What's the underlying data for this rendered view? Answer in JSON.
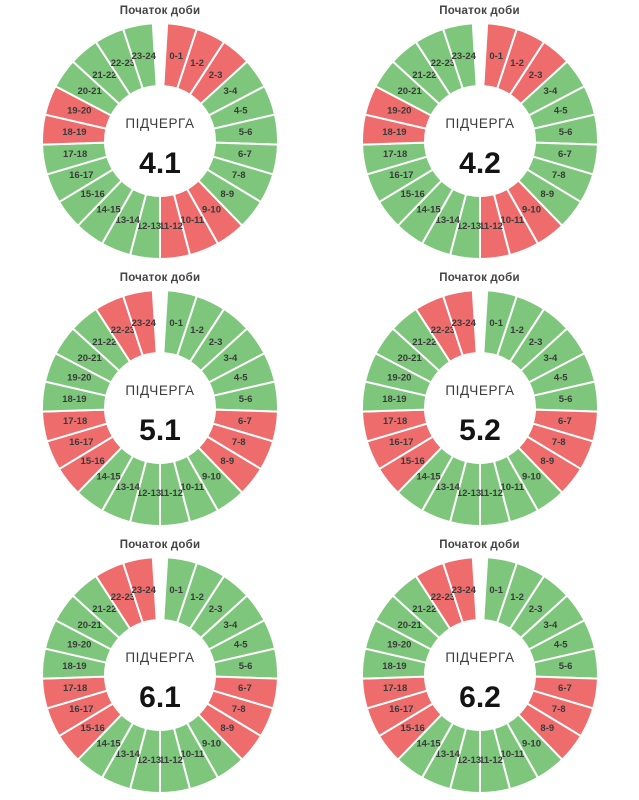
{
  "page": {
    "background": "#ffffff"
  },
  "colors": {
    "segment_on": "#7dc67b",
    "segment_off": "#ee6c6c",
    "slice_border": "#ffffff",
    "hour_label": "#3a3a3a",
    "day_start_label": "#444444",
    "center_label": "#3c3c3c",
    "center_value": "#141414"
  },
  "chart_data": [
    {
      "type": "pie",
      "style": "donut",
      "title": "Початок доби",
      "center_label": "ПІДЧЕРГА",
      "center_value": "4.1",
      "equal_slices": true,
      "legend_position": "none",
      "categories": [
        "0-1",
        "1-2",
        "2-3",
        "3-4",
        "4-5",
        "5-6",
        "6-7",
        "7-8",
        "8-9",
        "9-10",
        "10-11",
        "11-12",
        "12-13",
        "13-14",
        "14-15",
        "15-16",
        "16-17",
        "17-18",
        "18-19",
        "19-20",
        "20-21",
        "21-22",
        "22-23",
        "23-24"
      ],
      "statuses": [
        "off",
        "off",
        "off",
        "on",
        "on",
        "on",
        "on",
        "on",
        "on",
        "off",
        "off",
        "off",
        "on",
        "on",
        "on",
        "on",
        "on",
        "on",
        "off",
        "off",
        "on",
        "on",
        "on",
        "on"
      ]
    },
    {
      "type": "pie",
      "style": "donut",
      "title": "Початок доби",
      "center_label": "ПІДЧЕРГА",
      "center_value": "4.2",
      "equal_slices": true,
      "legend_position": "none",
      "categories": [
        "0-1",
        "1-2",
        "2-3",
        "3-4",
        "4-5",
        "5-6",
        "6-7",
        "7-8",
        "8-9",
        "9-10",
        "10-11",
        "11-12",
        "12-13",
        "13-14",
        "14-15",
        "15-16",
        "16-17",
        "17-18",
        "18-19",
        "19-20",
        "20-21",
        "21-22",
        "22-23",
        "23-24"
      ],
      "statuses": [
        "off",
        "off",
        "off",
        "on",
        "on",
        "on",
        "on",
        "on",
        "on",
        "off",
        "off",
        "off",
        "on",
        "on",
        "on",
        "on",
        "on",
        "on",
        "off",
        "off",
        "on",
        "on",
        "on",
        "on"
      ]
    },
    {
      "type": "pie",
      "style": "donut",
      "title": "Початок доби",
      "center_label": "ПІДЧЕРГА",
      "center_value": "5.1",
      "equal_slices": true,
      "legend_position": "none",
      "categories": [
        "0-1",
        "1-2",
        "2-3",
        "3-4",
        "4-5",
        "5-6",
        "6-7",
        "7-8",
        "8-9",
        "9-10",
        "10-11",
        "11-12",
        "12-13",
        "13-14",
        "14-15",
        "15-16",
        "16-17",
        "17-18",
        "18-19",
        "19-20",
        "20-21",
        "21-22",
        "22-23",
        "23-24"
      ],
      "statuses": [
        "on",
        "on",
        "on",
        "on",
        "on",
        "on",
        "off",
        "off",
        "off",
        "on",
        "on",
        "on",
        "on",
        "on",
        "on",
        "off",
        "off",
        "off",
        "on",
        "on",
        "on",
        "on",
        "off",
        "off"
      ]
    },
    {
      "type": "pie",
      "style": "donut",
      "title": "Початок доби",
      "center_label": "ПІДЧЕРГА",
      "center_value": "5.2",
      "equal_slices": true,
      "legend_position": "none",
      "categories": [
        "0-1",
        "1-2",
        "2-3",
        "3-4",
        "4-5",
        "5-6",
        "6-7",
        "7-8",
        "8-9",
        "9-10",
        "10-11",
        "11-12",
        "12-13",
        "13-14",
        "14-15",
        "15-16",
        "16-17",
        "17-18",
        "18-19",
        "19-20",
        "20-21",
        "21-22",
        "22-23",
        "23-24"
      ],
      "statuses": [
        "on",
        "on",
        "on",
        "on",
        "on",
        "on",
        "off",
        "off",
        "off",
        "on",
        "on",
        "on",
        "on",
        "on",
        "on",
        "off",
        "off",
        "off",
        "on",
        "on",
        "on",
        "on",
        "off",
        "off"
      ]
    },
    {
      "type": "pie",
      "style": "donut",
      "title": "Початок доби",
      "center_label": "ПІДЧЕРГА",
      "center_value": "6.1",
      "equal_slices": true,
      "legend_position": "none",
      "categories": [
        "0-1",
        "1-2",
        "2-3",
        "3-4",
        "4-5",
        "5-6",
        "6-7",
        "7-8",
        "8-9",
        "9-10",
        "10-11",
        "11-12",
        "12-13",
        "13-14",
        "14-15",
        "15-16",
        "16-17",
        "17-18",
        "18-19",
        "19-20",
        "20-21",
        "21-22",
        "22-23",
        "23-24"
      ],
      "statuses": [
        "on",
        "on",
        "on",
        "on",
        "on",
        "on",
        "off",
        "off",
        "off",
        "on",
        "on",
        "on",
        "on",
        "on",
        "on",
        "off",
        "off",
        "off",
        "on",
        "on",
        "on",
        "on",
        "off",
        "off"
      ]
    },
    {
      "type": "pie",
      "style": "donut",
      "title": "Початок доби",
      "center_label": "ПІДЧЕРГА",
      "center_value": "6.2",
      "equal_slices": true,
      "legend_position": "none",
      "categories": [
        "0-1",
        "1-2",
        "2-3",
        "3-4",
        "4-5",
        "5-6",
        "6-7",
        "7-8",
        "8-9",
        "9-10",
        "10-11",
        "11-12",
        "12-13",
        "13-14",
        "14-15",
        "15-16",
        "16-17",
        "17-18",
        "18-19",
        "19-20",
        "20-21",
        "21-22",
        "22-23",
        "23-24"
      ],
      "statuses": [
        "on",
        "on",
        "on",
        "on",
        "on",
        "on",
        "off",
        "off",
        "off",
        "on",
        "on",
        "on",
        "on",
        "on",
        "on",
        "off",
        "off",
        "off",
        "on",
        "on",
        "on",
        "on",
        "off",
        "off"
      ]
    }
  ]
}
